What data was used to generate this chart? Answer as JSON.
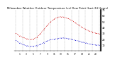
{
  "title": "Milwaukee Weather Outdoor Temperature (vs) Dew Point (Last 24 Hours)",
  "title_fontsize": 2.8,
  "bg_color": "#ffffff",
  "plot_bg_color": "#ffffff",
  "grid_color": "#888888",
  "temp_color": "#cc0000",
  "dew_color": "#0000cc",
  "temp_values": [
    30,
    26,
    23,
    21,
    19,
    20,
    23,
    29,
    36,
    43,
    49,
    54,
    57,
    58,
    57,
    55,
    52,
    48,
    44,
    40,
    37,
    34,
    32,
    30,
    29
  ],
  "dew_values": [
    18,
    14,
    11,
    9,
    8,
    8,
    9,
    11,
    14,
    17,
    19,
    20,
    21,
    22,
    22,
    21,
    20,
    18,
    17,
    15,
    14,
    12,
    11,
    10,
    10
  ],
  "ylim_min": 0,
  "ylim_max": 70,
  "ytick_vals": [
    10,
    20,
    30,
    40,
    50,
    60,
    70
  ],
  "ytick_labels": [
    "10",
    "20",
    "30",
    "40",
    "50",
    "60",
    "70"
  ],
  "num_points": 25,
  "right_margin_label": "F"
}
